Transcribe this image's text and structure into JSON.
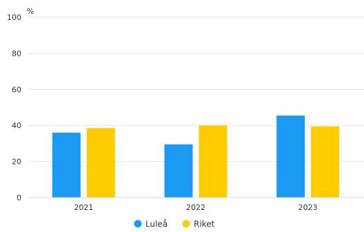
{
  "chart_data": {
    "type": "bar",
    "unit_label": "%",
    "categories": [
      "2021",
      "2022",
      "2023"
    ],
    "series": [
      {
        "name": "Luleå",
        "color": "#1a9af2",
        "values": [
          36,
          29.5,
          45.5
        ]
      },
      {
        "name": "Riket",
        "color": "#ffcc00",
        "values": [
          38.5,
          40,
          39.5
        ]
      }
    ],
    "ylim": [
      0,
      100
    ],
    "yticks": [
      0,
      20,
      40,
      60,
      80,
      100
    ],
    "grid": true,
    "legend_position": "bottom"
  },
  "colors": {
    "grid": "#e6e6e6",
    "axis": "#ccd6eb",
    "text": "#333333"
  }
}
